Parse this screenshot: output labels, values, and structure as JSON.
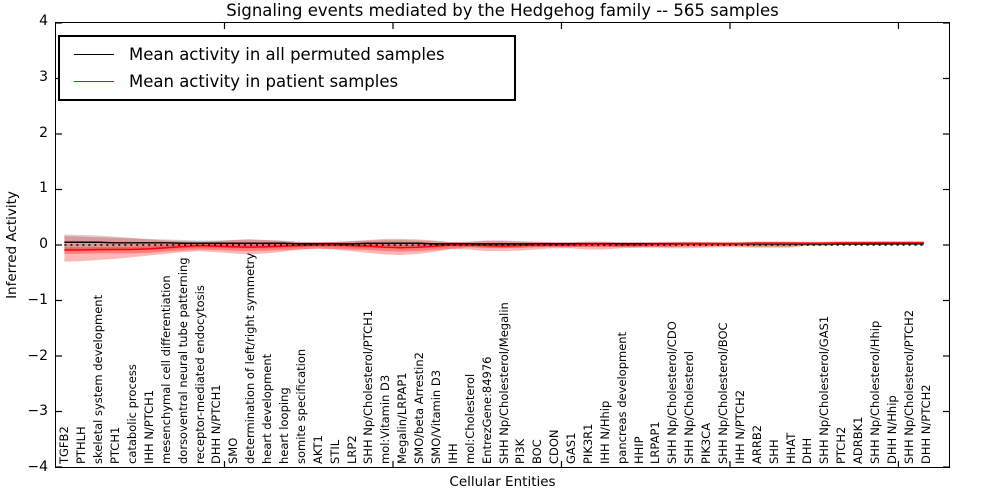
{
  "legend": {
    "items": [
      {
        "label": "Mean activity in all permuted samples",
        "color": "#000000"
      },
      {
        "label": "Mean activity in patient samples",
        "color": "#ff0000"
      }
    ]
  },
  "chart_data": {
    "type": "line",
    "title": "Signaling events mediated by the Hedgehog family -- 565 samples",
    "xlabel": "Cellular Entities",
    "ylabel": "Inferred Activity",
    "ylim": [
      -4,
      4
    ],
    "xlim": [
      0,
      53
    ],
    "grid": false,
    "legend_position": "upper left",
    "yticks": [
      {
        "value": 4,
        "label": "4"
      },
      {
        "value": 3,
        "label": "3"
      },
      {
        "value": 2,
        "label": "2"
      },
      {
        "value": 1,
        "label": "1"
      },
      {
        "value": 0,
        "label": "0"
      },
      {
        "value": -1,
        "label": "−1"
      },
      {
        "value": -2,
        "label": "−2"
      },
      {
        "value": -3,
        "label": "−3"
      },
      {
        "value": -4,
        "label": "−4"
      }
    ],
    "xticks": [
      10,
      20,
      30,
      40,
      50
    ],
    "categories": [
      "TGFB2",
      "PTHLH",
      "skeletal system development",
      "PTCH1",
      "catabolic process",
      "IHH N/PTCH1",
      "mesenchymal cell differentiation",
      "dorsoventral neural tube patterning",
      "receptor-mediated endocytosis",
      "DHH N/PTCH1",
      "SMO",
      "determination of left/right symmetry",
      "heart development",
      "heart looping",
      "somite specification",
      "AKT1",
      "STIL",
      "LRP2",
      "SHH Np/Cholesterol/PTCH1",
      "mol:Vitamin D3",
      "Megalin/LRPAP1",
      "SMO/beta Arrestin2",
      "SMO/Vitamin D3",
      "IHH",
      "mol:Cholesterol",
      "EntrezGene:84976",
      "SHH Np/Cholesterol/Megalin",
      "PI3K",
      "BOC",
      "CDON",
      "GAS1",
      "PIK3R1",
      "IHH N/Hhip",
      "pancreas development",
      "HHIP",
      "LRPAP1",
      "SHH Np/Cholesterol/CDO",
      "SHH Np/Cholesterol",
      "PIK3CA",
      "SHH Np/Cholesterol/BOC",
      "IHH N/PTCH2",
      "ARRB2",
      "SHH",
      "HHAT",
      "DHH",
      "SHH Np/Cholesterol/GAS1",
      "PTCH2",
      "ADRBK1",
      "SHH Np/Cholesterol/Hhip",
      "DHH N/Hhip",
      "SHH Np/Cholesterol/PTCH2",
      "DHH N/PTCH2"
    ],
    "series": [
      {
        "id": "permuted-mean-line",
        "name": "Mean activity in all permuted samples",
        "color": "#000000",
        "style": "solid",
        "values": [
          0.05,
          0.05,
          0.05,
          0.04,
          0.04,
          0.04,
          0.04,
          0.03,
          0.03,
          0.03,
          0.03,
          0.03,
          0.03,
          0.03,
          0.02,
          0.02,
          0.02,
          0.02,
          0.03,
          0.03,
          0.03,
          0.03,
          0.02,
          0.02,
          0.02,
          0.02,
          0.02,
          0.02,
          0.02,
          0.02,
          0.02,
          0.02,
          0.02,
          0.02,
          0.02,
          0.02,
          0.02,
          0.02,
          0.02,
          0.02,
          0.02,
          0.02,
          0.02,
          0.02,
          0.02,
          0.02,
          0.02,
          0.02,
          0.02,
          0.02,
          0.02,
          0.02
        ]
      },
      {
        "id": "patient-mean-line",
        "name": "Mean activity in patient samples",
        "color": "#ff0000",
        "style": "solid",
        "values": [
          -0.09,
          -0.09,
          -0.085,
          -0.08,
          -0.08,
          -0.07,
          -0.05,
          -0.03,
          -0.01,
          -0.02,
          -0.03,
          -0.04,
          -0.03,
          -0.02,
          -0.01,
          0,
          0,
          -0.01,
          -0.02,
          -0.04,
          -0.05,
          -0.04,
          -0.02,
          0,
          0,
          -0.01,
          -0.02,
          -0.01,
          0,
          0,
          0,
          0.01,
          0.01,
          0,
          0,
          0.01,
          0.01,
          0.02,
          0.02,
          0.02,
          0.02,
          0.03,
          0.03,
          0.03,
          0.03,
          0.03,
          0.035,
          0.035,
          0.04,
          0.04,
          0.04,
          0.04
        ]
      }
    ],
    "zero_line": {
      "y": 0,
      "color": "#000000",
      "style": "dotted"
    },
    "bands": [
      {
        "name": "permuted-std-band",
        "color": "#999999",
        "opacity": 0.45,
        "upper": [
          0.19,
          0.18,
          0.17,
          0.15,
          0.13,
          0.11,
          0.1,
          0.09,
          0.08,
          0.08,
          0.09,
          0.1,
          0.09,
          0.08,
          0.06,
          0.05,
          0.06,
          0.07,
          0.08,
          0.09,
          0.09,
          0.08,
          0.07,
          0.05,
          0.06,
          0.07,
          0.07,
          0.06,
          0.06,
          0.05,
          0.05,
          0.06,
          0.06,
          0.05,
          0.05,
          0.05,
          0.05,
          0.05,
          0.05,
          0.04,
          0.04,
          0.05,
          0.05,
          0.05,
          0.04,
          0.04,
          0.05,
          0.05,
          0.05,
          0.05,
          0.05,
          0.05
        ],
        "lower": [
          -0.1,
          -0.1,
          -0.09,
          -0.09,
          -0.08,
          -0.08,
          -0.07,
          -0.06,
          -0.05,
          -0.05,
          -0.06,
          -0.06,
          -0.06,
          -0.05,
          -0.04,
          -0.03,
          -0.04,
          -0.05,
          -0.06,
          -0.06,
          -0.06,
          -0.06,
          -0.05,
          -0.04,
          -0.04,
          -0.05,
          -0.05,
          -0.05,
          -0.04,
          -0.03,
          -0.03,
          -0.04,
          -0.04,
          -0.03,
          -0.03,
          -0.03,
          -0.03,
          -0.03,
          -0.03,
          -0.02,
          -0.02,
          -0.03,
          -0.03,
          -0.03,
          -0.01,
          -0.01,
          0,
          0,
          0,
          0,
          0.01,
          0.01
        ]
      },
      {
        "name": "patient-std-band",
        "color": "#ff0000",
        "opacity": 0.28,
        "upper": [
          0.16,
          0.15,
          0.14,
          0.13,
          0.12,
          0.1,
          0.08,
          0.07,
          0.06,
          0.07,
          0.09,
          0.1,
          0.09,
          0.07,
          0.05,
          0.04,
          0.05,
          0.07,
          0.09,
          0.11,
          0.11,
          0.1,
          0.08,
          0.05,
          0.06,
          0.08,
          0.08,
          0.07,
          0.06,
          0.05,
          0.05,
          0.06,
          0.06,
          0.05,
          0.05,
          0.05,
          0.06,
          0.06,
          0.05,
          0.05,
          0.05,
          0.06,
          0.06,
          0.06,
          0.05,
          0.05,
          0.06,
          0.06,
          0.06,
          0.06,
          0.06,
          0.06
        ],
        "lower": [
          -0.3,
          -0.29,
          -0.27,
          -0.25,
          -0.22,
          -0.19,
          -0.16,
          -0.13,
          -0.11,
          -0.13,
          -0.15,
          -0.17,
          -0.15,
          -0.12,
          -0.08,
          -0.06,
          -0.08,
          -0.11,
          -0.14,
          -0.17,
          -0.18,
          -0.16,
          -0.12,
          -0.07,
          -0.08,
          -0.11,
          -0.11,
          -0.1,
          -0.08,
          -0.06,
          -0.06,
          -0.08,
          -0.08,
          -0.06,
          -0.05,
          -0.05,
          -0.06,
          -0.06,
          -0.05,
          -0.04,
          -0.04,
          -0.05,
          -0.05,
          -0.05,
          -0.01,
          -0.01,
          0,
          0,
          0,
          0.01,
          0.01,
          0.01
        ]
      },
      {
        "name": "patient-inner-band",
        "color": "#ff0000",
        "opacity": 0.3,
        "upper": [
          -0.04,
          -0.04,
          -0.035,
          -0.03,
          -0.03,
          -0.02,
          0,
          0.02,
          0.04,
          0.03,
          0.02,
          0.01,
          0.02,
          0.03,
          0.04,
          0.05,
          0.05,
          0.04,
          0.03,
          0.01,
          0,
          0.01,
          0.03,
          0.05,
          0.03,
          0.02,
          0.01,
          0.02,
          0.03,
          0.03,
          0.03,
          0.04,
          0.04,
          0.03,
          0.03,
          0.04,
          0.04,
          0.05,
          0.05,
          0.05,
          0.05,
          0.06,
          0.06,
          0.06,
          0.06,
          0.06,
          0.065,
          0.065,
          0.07,
          0.07,
          0.07,
          0.07
        ],
        "lower": [
          -0.16,
          -0.16,
          -0.155,
          -0.15,
          -0.15,
          -0.14,
          -0.12,
          -0.1,
          -0.08,
          -0.09,
          -0.1,
          -0.11,
          -0.1,
          -0.09,
          -0.08,
          -0.07,
          -0.07,
          -0.08,
          -0.09,
          -0.11,
          -0.12,
          -0.11,
          -0.09,
          -0.07,
          -0.04,
          -0.05,
          -0.06,
          -0.05,
          -0.04,
          -0.04,
          -0.04,
          -0.03,
          -0.03,
          -0.04,
          -0.04,
          -0.03,
          -0.03,
          -0.02,
          -0.02,
          -0.02,
          -0.02,
          -0.01,
          -0.01,
          -0.01,
          0,
          0,
          0.01,
          0.01,
          0.01,
          0.02,
          0.02,
          0.02
        ]
      }
    ]
  }
}
